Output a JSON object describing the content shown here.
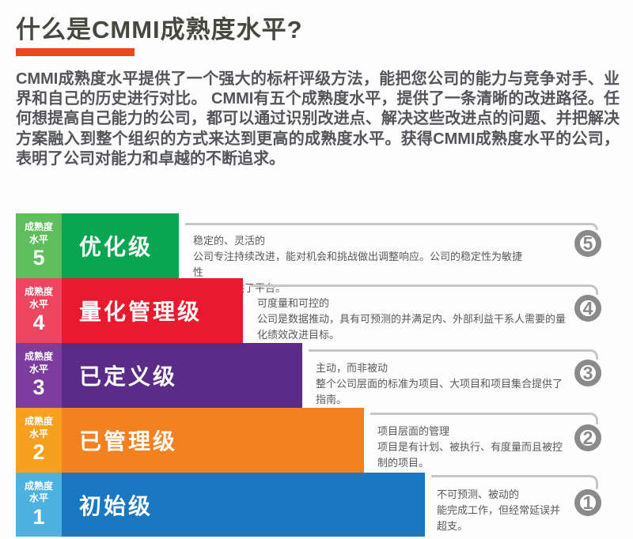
{
  "page": {
    "title": "什么是CMMI成熟度水平?",
    "intro": "CMMI成熟度水平提供了一个强大的标杆评级方法，能把您公司的能力与竞争对手、业界和自己的历史进行对比。 CMMI有五个成熟度水平，提供了一条清晰的改进路径。任何想提高自己能力的公司，都可以通过识别改进点、解决这些改进点的问题、并把解决方案融入到整个组织的方式来达到更高的成熟度水平。获得CMMI成熟度水平的公司，表明了公司对能力和卓越的不断追求。"
  },
  "colors": {
    "title_text": "#48473f",
    "accent_underline": "#e8481c",
    "intro_text": "#54555a",
    "description_text": "#58595b",
    "connector_line": "#c6c6c6",
    "badge_ring": "#8a8a8a",
    "background": "#fdfdfd"
  },
  "chart": {
    "type": "maturity-step-diagram",
    "label_line1": "成熟度",
    "label_line2": "水平",
    "levels": [
      {
        "num": "5",
        "name": "优化级",
        "desc": "稳定的、灵活的\n公司专注持续改进，能对机会和挑战做出调整响应。公司的稳定性为敏捷性\n和创新提供了平台。",
        "bar_color": "#0aa551",
        "label_color": "#5fbe5c"
      },
      {
        "num": "4",
        "name": "量化管理级",
        "desc": "可度量和可控的\n公司是数据推动，具有可预测的并满足内、外部利益干系人需要的量\n化绩效改进目标。",
        "bar_color": "#e9192e",
        "label_color": "#ee4660"
      },
      {
        "num": "3",
        "name": "已定义级",
        "desc": "主动，而非被动\n整个公司层面的标准为项目、大项目和项目集合提供了\n指南。",
        "bar_color": "#5b2c87",
        "label_color": "#7d3c9e"
      },
      {
        "num": "2",
        "name": "已管理级",
        "desc": "项目层面的管理\n项目是有计划、被执行、有度量而且被控\n制的项目。",
        "bar_color": "#f48120",
        "label_color": "#f7a01f"
      },
      {
        "num": "1",
        "name": "初始级",
        "desc": "不可预测、被动的\n能完成工作，但经常延误并\n超支。",
        "bar_color": "#1a77c2",
        "label_color": "#4eb2e1"
      }
    ]
  }
}
